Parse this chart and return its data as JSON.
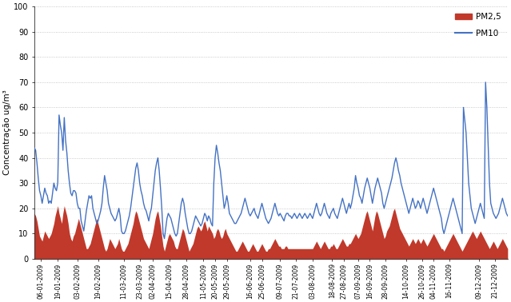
{
  "x_labels": [
    "06-01-2009",
    "19-01-2009",
    "03-02-2009",
    "19-02-2009",
    "11-03-2009",
    "23-03-2009",
    "02-04-2009",
    "15-04-2009",
    "28-04-2009",
    "11-05-2009",
    "20-05-2009",
    "29-05-2009",
    "16-06-2009",
    "25-06-2009",
    "09-07-2009",
    "21-07-2009",
    "03-08-2009",
    "18-08-2009",
    "27-08-2009",
    "07-09-2009",
    "16-09-2009",
    "28-09-2009",
    "14-10-2009",
    "26-10-2009",
    "04-11-2009",
    "16-11-2009",
    "09-12-2009",
    "21-12-2009"
  ],
  "pm25_color": "#c0392b",
  "pm10_color": "#4472c4",
  "ylabel": "Concentração ug/m³",
  "ylim": [
    0,
    100
  ],
  "yticks": [
    0,
    10,
    20,
    30,
    40,
    50,
    60,
    70,
    80,
    90,
    100
  ],
  "legend_pm25": "PM2,5",
  "legend_pm10": "PM10",
  "background_color": "#ffffff"
}
